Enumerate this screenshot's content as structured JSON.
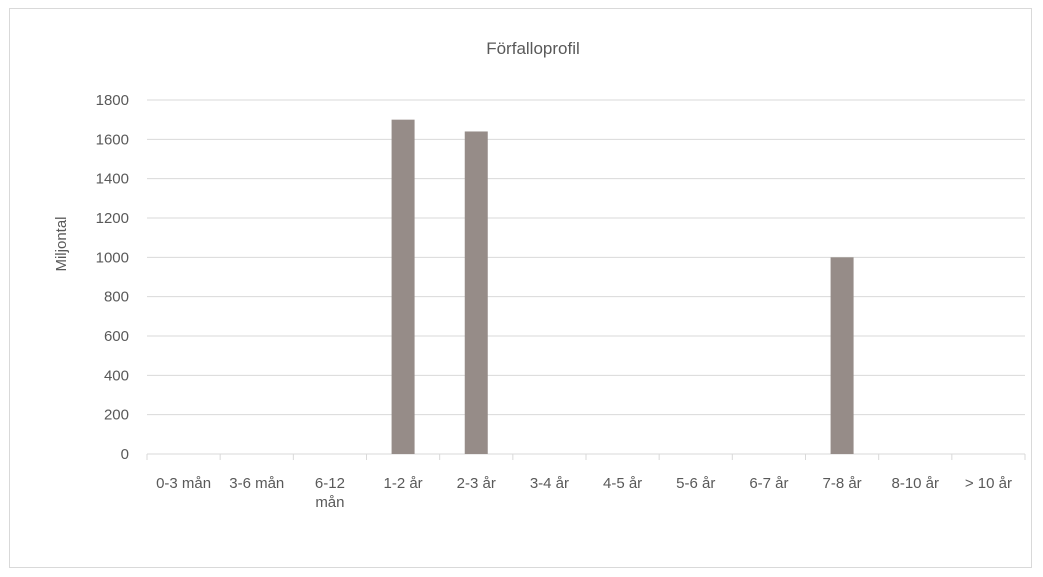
{
  "chart_data": {
    "type": "bar",
    "title": "Förfalloprofil",
    "xlabel": "",
    "ylabel": "Miljontal",
    "categories": [
      "0-3 mån",
      "3-6 mån",
      "6-12 mån",
      "1-2 år",
      "2-3 år",
      "3-4 år",
      "4-5 år",
      "5-6 år",
      "6-7 år",
      "7-8 år",
      "8-10 år",
      "> 10 år"
    ],
    "values": [
      0,
      0,
      0,
      1700,
      1640,
      0,
      0,
      0,
      0,
      1000,
      0,
      0
    ],
    "ylim": [
      0,
      1800
    ],
    "yticks": [
      "0",
      "200",
      "400",
      "600",
      "800",
      "1000",
      "1200",
      "1400",
      "1600",
      "1800"
    ],
    "grid": true,
    "legend": "none",
    "colors": {
      "bar": "#968c88",
      "grid": "#d9d9d9",
      "text": "#595959"
    }
  }
}
